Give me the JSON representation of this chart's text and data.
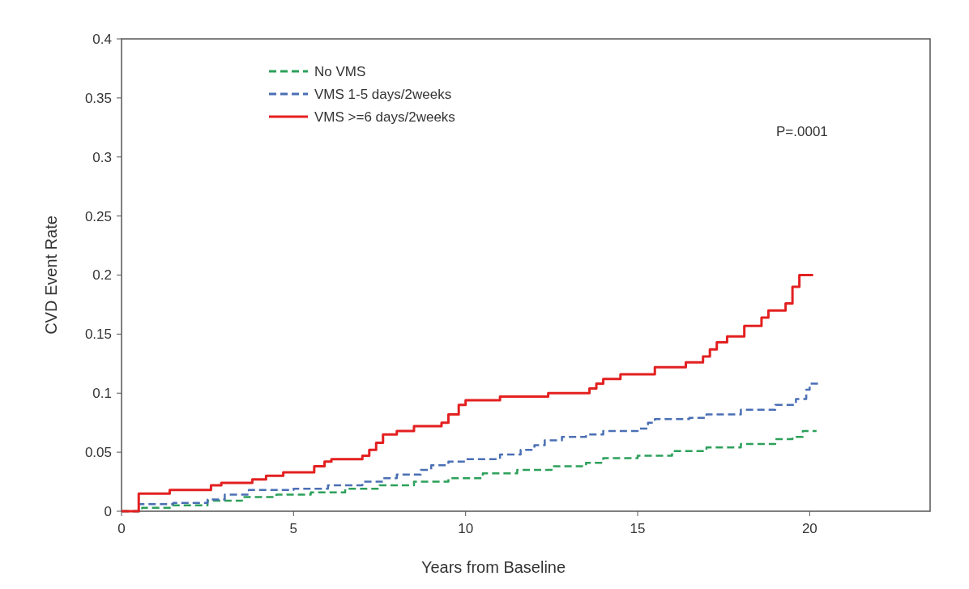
{
  "chart_data": {
    "type": "step",
    "xlabel": "Years from Baseline",
    "ylabel": "CVD Event Rate",
    "xlim": [
      0,
      23.5
    ],
    "xticks": [
      0,
      5,
      10,
      15,
      20
    ],
    "ylim": [
      0,
      0.4
    ],
    "yticks": [
      0,
      0.05,
      0.1,
      0.15,
      0.2,
      0.25,
      0.3,
      0.35,
      0.4
    ],
    "grid": false,
    "legend": "top left",
    "annotations": [
      "P=.0001"
    ],
    "series": [
      {
        "name": "No VMS",
        "color": "#2ca05a",
        "line_style": "dashed",
        "x": [
          0,
          0.6,
          1.5,
          2.5,
          3.5,
          4.5,
          5.5,
          6.5,
          7.5,
          8.5,
          9.5,
          10.5,
          11.5,
          12.5,
          13.5,
          14,
          15,
          16,
          17,
          18,
          19,
          19.5,
          19.8,
          20.2
        ],
        "values": [
          0,
          0.003,
          0.005,
          0.009,
          0.012,
          0.014,
          0.016,
          0.019,
          0.022,
          0.025,
          0.028,
          0.032,
          0.035,
          0.038,
          0.041,
          0.045,
          0.047,
          0.051,
          0.054,
          0.057,
          0.061,
          0.063,
          0.068,
          0.068
        ]
      },
      {
        "name": "VMS 1-5 days/2weeks",
        "color": "#4a6fb5",
        "line_style": "dashed",
        "x": [
          0,
          0.5,
          1.5,
          2.5,
          3,
          3.7,
          5,
          6,
          7,
          7.6,
          8,
          8.7,
          9,
          9.5,
          10,
          11,
          11.6,
          12,
          12.3,
          12.8,
          13.5,
          14,
          15,
          15.3,
          15.5,
          16.5,
          17,
          18,
          19,
          19.6,
          19.9,
          20,
          20.3
        ],
        "values": [
          0,
          0.006,
          0.007,
          0.01,
          0.014,
          0.018,
          0.019,
          0.022,
          0.025,
          0.028,
          0.031,
          0.035,
          0.039,
          0.042,
          0.044,
          0.048,
          0.052,
          0.056,
          0.06,
          0.063,
          0.065,
          0.068,
          0.07,
          0.075,
          0.078,
          0.079,
          0.082,
          0.086,
          0.09,
          0.095,
          0.103,
          0.108,
          0.108
        ]
      },
      {
        "name": "VMS >=6 days/2weeks",
        "color": "#e32020",
        "line_style": "solid",
        "x": [
          0,
          0.5,
          1.4,
          2.6,
          2.9,
          3.8,
          4.2,
          4.7,
          5.6,
          5.9,
          6.1,
          7,
          7.2,
          7.4,
          7.6,
          8,
          8.5,
          9.3,
          9.5,
          9.8,
          10,
          11,
          12.4,
          13.6,
          13.8,
          14,
          14.5,
          15.5,
          16.4,
          16.9,
          17.1,
          17.3,
          17.6,
          18.1,
          18.6,
          18.8,
          19.3,
          19.5,
          19.7,
          20.1
        ],
        "values": [
          0,
          0.015,
          0.018,
          0.022,
          0.024,
          0.027,
          0.03,
          0.033,
          0.038,
          0.042,
          0.044,
          0.047,
          0.052,
          0.058,
          0.065,
          0.068,
          0.072,
          0.075,
          0.082,
          0.09,
          0.094,
          0.097,
          0.1,
          0.104,
          0.108,
          0.112,
          0.116,
          0.122,
          0.126,
          0.131,
          0.137,
          0.143,
          0.148,
          0.157,
          0.164,
          0.17,
          0.176,
          0.19,
          0.2,
          0.2
        ]
      }
    ]
  }
}
